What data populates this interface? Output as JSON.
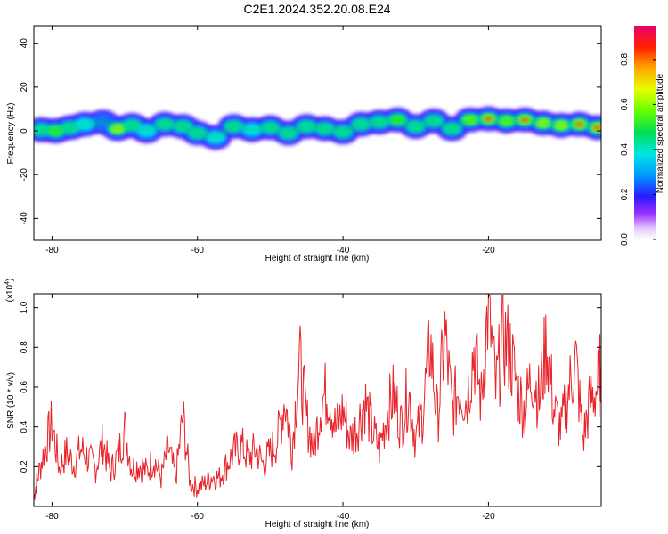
{
  "chart_data": [
    {
      "type": "heatmap",
      "title": "C2E1.2024.352.20.08.E24",
      "xlabel": "Height of straight line (km)",
      "ylabel": "Frequency (Hz)",
      "xlim": [
        -82.5,
        -4.5
      ],
      "ylim": [
        -50,
        48
      ],
      "xticks": [
        -80,
        -60,
        -40,
        -20
      ],
      "yticks": [
        40,
        20,
        0,
        -20,
        -40
      ],
      "colorbar": {
        "label": "Normalized spectral amplitude",
        "range": [
          0,
          0.95
        ],
        "ticks": [
          0.0,
          0.2,
          0.4,
          0.6,
          0.8
        ]
      },
      "band": [
        {
          "x": -81.5,
          "freq": 0.5,
          "amp": 0.5
        },
        {
          "x": -79.5,
          "freq": 0.0,
          "amp": 0.55
        },
        {
          "x": -77.5,
          "freq": 1.5,
          "amp": 0.45
        },
        {
          "x": -75.5,
          "freq": 3.0,
          "amp": 0.4
        },
        {
          "x": -73.0,
          "freq": 4.0,
          "amp": 0.35
        },
        {
          "x": -71.0,
          "freq": 1.0,
          "amp": 0.7
        },
        {
          "x": -69.0,
          "freq": 2.5,
          "amp": 0.45
        },
        {
          "x": -67.0,
          "freq": 0.0,
          "amp": 0.4
        },
        {
          "x": -64.5,
          "freq": 3.0,
          "amp": 0.45
        },
        {
          "x": -62.0,
          "freq": 2.0,
          "amp": 0.5
        },
        {
          "x": -60.0,
          "freq": -1.0,
          "amp": 0.45
        },
        {
          "x": -57.5,
          "freq": -3.0,
          "amp": 0.4
        },
        {
          "x": -55.0,
          "freq": 2.0,
          "amp": 0.45
        },
        {
          "x": -52.5,
          "freq": 0.5,
          "amp": 0.4
        },
        {
          "x": -50.0,
          "freq": 1.5,
          "amp": 0.45
        },
        {
          "x": -47.5,
          "freq": -1.0,
          "amp": 0.5
        },
        {
          "x": -45.0,
          "freq": 2.0,
          "amp": 0.45
        },
        {
          "x": -42.5,
          "freq": 1.0,
          "amp": 0.5
        },
        {
          "x": -40.0,
          "freq": -0.5,
          "amp": 0.45
        },
        {
          "x": -37.5,
          "freq": 3.0,
          "amp": 0.45
        },
        {
          "x": -35.0,
          "freq": 4.0,
          "amp": 0.5
        },
        {
          "x": -32.5,
          "freq": 5.0,
          "amp": 0.55
        },
        {
          "x": -30.0,
          "freq": 2.0,
          "amp": 0.45
        },
        {
          "x": -27.5,
          "freq": 4.5,
          "amp": 0.5
        },
        {
          "x": -25.0,
          "freq": 1.0,
          "amp": 0.45
        },
        {
          "x": -22.5,
          "freq": 5.0,
          "amp": 0.6
        },
        {
          "x": -20.0,
          "freq": 5.5,
          "amp": 0.85
        },
        {
          "x": -17.5,
          "freq": 4.5,
          "amp": 0.6
        },
        {
          "x": -15.0,
          "freq": 5.0,
          "amp": 0.9
        },
        {
          "x": -12.5,
          "freq": 3.5,
          "amp": 0.65
        },
        {
          "x": -10.0,
          "freq": 2.5,
          "amp": 0.7
        },
        {
          "x": -7.5,
          "freq": 3.0,
          "amp": 0.85
        },
        {
          "x": -5.0,
          "freq": 1.5,
          "amp": 0.9
        }
      ]
    },
    {
      "type": "line",
      "title": "",
      "xlabel": "Height of straight line (km)",
      "ylabel": "SNR (10 * v/v)",
      "scale_label": "(x10",
      "scale_exp": "4",
      "scale_close": ")",
      "xlim": [
        -82.5,
        -4.5
      ],
      "ylim": [
        0,
        1.07
      ],
      "xticks": [
        -80,
        -60,
        -40,
        -20
      ],
      "yticks": [
        0.2,
        0.4,
        0.6,
        0.8,
        1.0
      ],
      "color": "#e8232a",
      "series": [
        {
          "x": [
            -82.5,
            -82,
            -81,
            -80,
            -79,
            -78,
            -77,
            -76,
            -75,
            -74,
            -73,
            -72,
            -71,
            -70,
            -69,
            -68,
            -67,
            -66,
            -65,
            -64,
            -63,
            -62,
            -61,
            -60,
            -59,
            -58,
            -57,
            -56,
            -55,
            -54,
            -53,
            -52,
            -51,
            -50,
            -49,
            -48,
            -47,
            -46,
            -45,
            -44,
            -43,
            -42,
            -41,
            -40,
            -39,
            -38,
            -37,
            -36,
            -35,
            -34,
            -33,
            -32,
            -31,
            -30,
            -29,
            -28,
            -27,
            -26,
            -25,
            -24,
            -23,
            -22,
            -21,
            -20,
            -19,
            -18,
            -17,
            -16,
            -15,
            -14,
            -13,
            -12,
            -11,
            -10,
            -9,
            -8,
            -7,
            -6,
            -5,
            -4.5
          ],
          "y": [
            0.05,
            0.15,
            0.3,
            0.43,
            0.2,
            0.28,
            0.22,
            0.3,
            0.25,
            0.2,
            0.34,
            0.18,
            0.26,
            0.4,
            0.2,
            0.22,
            0.18,
            0.25,
            0.15,
            0.3,
            0.15,
            0.47,
            0.12,
            0.1,
            0.12,
            0.16,
            0.15,
            0.22,
            0.28,
            0.32,
            0.25,
            0.3,
            0.22,
            0.28,
            0.35,
            0.56,
            0.3,
            0.76,
            0.45,
            0.3,
            0.55,
            0.6,
            0.4,
            0.5,
            0.35,
            0.42,
            0.55,
            0.4,
            0.3,
            0.48,
            0.58,
            0.42,
            0.6,
            0.35,
            0.5,
            0.85,
            0.45,
            0.9,
            0.5,
            0.62,
            0.55,
            0.82,
            0.55,
            1.06,
            0.6,
            0.88,
            0.8,
            0.6,
            0.5,
            0.7,
            0.55,
            0.86,
            0.5,
            0.4,
            0.6,
            0.76,
            0.35,
            0.55,
            0.62,
            0.72
          ]
        }
      ]
    }
  ]
}
